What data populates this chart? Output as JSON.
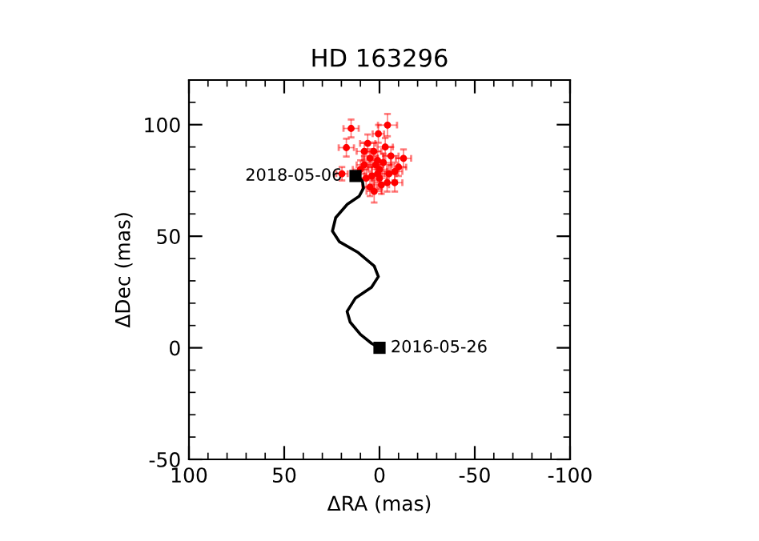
{
  "chart_data": {
    "type": "scatter",
    "title": "HD 163296",
    "xlabel": "ΔRA (mas)",
    "ylabel": "ΔDec (mas)",
    "xlim": [
      100,
      -100
    ],
    "xticks": [
      100,
      50,
      0,
      -50,
      -100
    ],
    "ylim": [
      -50,
      120
    ],
    "yticks": [
      -50,
      0,
      50,
      100
    ],
    "grid": false,
    "series": [
      {
        "color": "#ff0000",
        "marker": "circle",
        "x": [
          -4.2,
          14.9,
          17.4,
          19.7,
          0.6,
          6.2,
          -12.6,
          2.8,
          -8,
          8,
          5,
          -5,
          0,
          3,
          -3,
          8,
          -8,
          1,
          -1,
          4,
          -6,
          7,
          0,
          2,
          -4,
          10,
          -10,
          5,
          -2,
          1
        ],
        "values": [
          99.8,
          98.3,
          89.7,
          78,
          95.9,
          91.6,
          84.9,
          70.1,
          74,
          88,
          85,
          78,
          76,
          88,
          90,
          82,
          79,
          84,
          73,
          77,
          86,
          76,
          80,
          82,
          74,
          80,
          81,
          72,
          83,
          78
        ],
        "errors": [
          5,
          4,
          4,
          3,
          4,
          4,
          4,
          5,
          4,
          4,
          4,
          4,
          5,
          4,
          4,
          4,
          4,
          4,
          4,
          4,
          4,
          4,
          4,
          4,
          4,
          4,
          4,
          4,
          4,
          4
        ],
        "xerrors": [
          5,
          4,
          4,
          3,
          3,
          4,
          4,
          4,
          4,
          4,
          4,
          4,
          4,
          4,
          4,
          4,
          4,
          4,
          4,
          4,
          4,
          4,
          4,
          4,
          4,
          4,
          4,
          4,
          4,
          4
        ]
      },
      {
        "type": "line",
        "color": "#000000",
        "marker": "none",
        "line_style": "solid",
        "x": [
          0,
          4.2,
          10,
          15.4,
          17,
          12.6,
          4.2,
          0.6,
          2.8,
          11.2,
          21,
          24.7,
          23,
          16.9,
          10.7,
          8.4,
          9,
          12.6
        ],
        "values": [
          0,
          2,
          6,
          11.5,
          16.3,
          22.3,
          27.1,
          31.9,
          36.7,
          42.7,
          47.5,
          52.3,
          58.3,
          64.3,
          67.9,
          71.5,
          75,
          77
        ]
      },
      {
        "color": "#000000",
        "marker": "square",
        "x": [
          0,
          12.6
        ],
        "values": [
          0,
          77
        ]
      }
    ],
    "annotations": [
      {
        "text": "2016-05-26",
        "x": 0,
        "y": 0
      },
      {
        "text": "2018-05-06",
        "x": 12.6,
        "y": 77
      }
    ]
  }
}
